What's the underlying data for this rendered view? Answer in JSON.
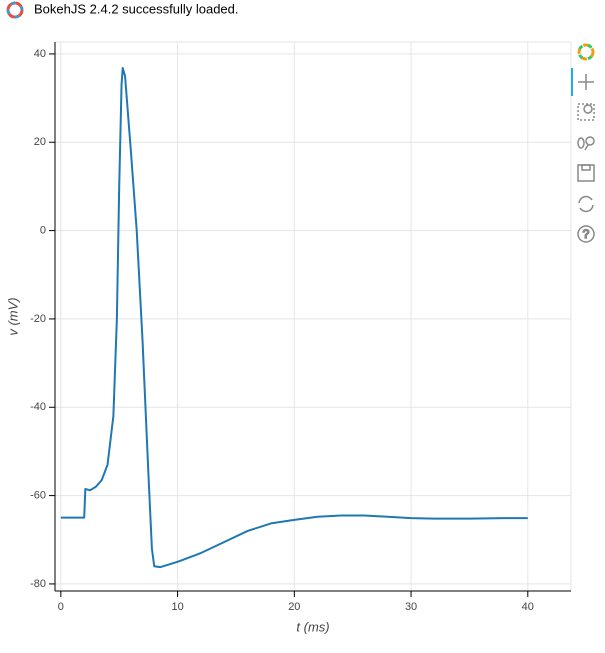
{
  "banner": "BokehJS 2.4.2 successfully loaded.",
  "chart_data": {
    "type": "line",
    "xlabel": "t (ms)",
    "ylabel": "v (mV)",
    "x": [
      0,
      2,
      2.1,
      2.5,
      3,
      3.5,
      4,
      4.5,
      4.8,
      5,
      5.2,
      5.3,
      5.5,
      6,
      6.5,
      7,
      7.5,
      7.8,
      8,
      8.5,
      10,
      12,
      14,
      16,
      18,
      20,
      22,
      24,
      26,
      28,
      30,
      32,
      35,
      38,
      40
    ],
    "series": [
      {
        "name": "v",
        "color": "#1f77b4",
        "values": [
          -65,
          -65,
          -58.5,
          -58.8,
          -58,
          -56.5,
          -53,
          -42,
          -20,
          10,
          33,
          36.8,
          35,
          18,
          0,
          -25,
          -55,
          -72,
          -76,
          -76.2,
          -75,
          -73,
          -70.5,
          -68,
          -66.3,
          -65.5,
          -64.8,
          -64.5,
          -64.5,
          -64.8,
          -65.1,
          -65.2,
          -65.2,
          -65.1,
          -65.1
        ]
      }
    ],
    "xlim": [
      -0.5,
      43.7
    ],
    "ylim": [
      -81.6,
      42.7
    ],
    "xticks": [
      0,
      10,
      20,
      30,
      40
    ],
    "yticks": [
      -80,
      -60,
      -40,
      -20,
      0,
      20,
      40
    ],
    "grid": true
  }
}
